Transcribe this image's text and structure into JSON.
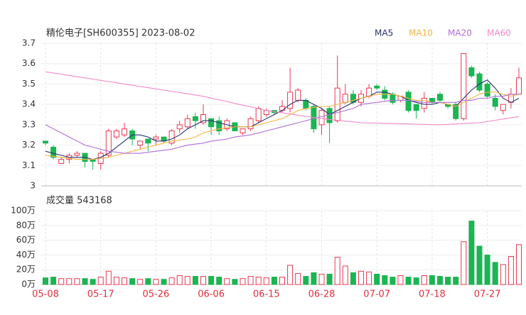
{
  "chart_data": [
    {
      "type": "candlestick",
      "title": "精伦电子[SH600355] 2023-08-02",
      "categories": [
        "05-08",
        null,
        null,
        null,
        null,
        null,
        null,
        "05-17",
        null,
        null,
        null,
        null,
        null,
        null,
        "05-26",
        null,
        null,
        null,
        null,
        null,
        null,
        "06-06",
        null,
        null,
        null,
        null,
        null,
        null,
        "06-15",
        null,
        null,
        null,
        null,
        null,
        null,
        "06-28",
        null,
        null,
        null,
        null,
        null,
        null,
        "07-07",
        null,
        null,
        null,
        null,
        null,
        null,
        "07-18",
        null,
        null,
        null,
        null,
        null,
        null,
        "07-27",
        null,
        null,
        null,
        null
      ],
      "open": [
        3.22,
        3.19,
        3.11,
        3.13,
        3.15,
        3.16,
        3.13,
        3.11,
        3.15,
        3.24,
        3.25,
        3.27,
        3.2,
        3.23,
        3.23,
        3.24,
        3.21,
        3.28,
        3.29,
        3.34,
        3.31,
        3.33,
        3.32,
        3.28,
        3.31,
        3.26,
        3.28,
        3.32,
        3.35,
        3.37,
        3.37,
        3.38,
        3.42,
        3.42,
        3.39,
        3.3,
        3.38,
        3.32,
        3.41,
        3.45,
        3.41,
        3.44,
        3.49,
        3.47,
        3.45,
        3.42,
        3.46,
        3.4,
        3.38,
        3.43,
        3.45,
        3.4,
        3.4,
        3.33,
        3.58,
        3.55,
        3.5,
        3.43,
        3.37,
        3.41,
        3.45
      ],
      "high": [
        3.22,
        3.2,
        3.14,
        3.16,
        3.17,
        3.16,
        3.13,
        3.17,
        3.28,
        3.28,
        3.31,
        3.28,
        3.22,
        3.23,
        3.25,
        3.24,
        3.28,
        3.32,
        3.35,
        3.36,
        3.4,
        3.33,
        3.34,
        3.33,
        3.31,
        3.28,
        3.34,
        3.39,
        3.38,
        3.37,
        3.42,
        3.58,
        3.48,
        3.43,
        3.4,
        3.38,
        3.39,
        3.64,
        3.5,
        3.47,
        3.47,
        3.5,
        3.5,
        3.49,
        3.46,
        3.44,
        3.47,
        3.4,
        3.46,
        3.43,
        3.46,
        3.4,
        3.41,
        3.65,
        3.59,
        3.56,
        3.51,
        3.45,
        3.4,
        3.48,
        3.58
      ],
      "low": [
        3.2,
        3.13,
        3.11,
        3.11,
        3.14,
        3.09,
        3.08,
        3.08,
        3.14,
        3.23,
        3.24,
        3.2,
        3.18,
        3.17,
        3.2,
        3.21,
        3.2,
        3.26,
        3.28,
        3.28,
        3.3,
        3.25,
        3.25,
        3.27,
        3.27,
        3.25,
        3.27,
        3.31,
        3.34,
        3.35,
        3.36,
        3.36,
        3.41,
        3.37,
        3.26,
        3.25,
        3.21,
        3.31,
        3.4,
        3.4,
        3.39,
        3.43,
        3.47,
        3.42,
        3.4,
        3.41,
        3.36,
        3.33,
        3.36,
        3.4,
        3.41,
        3.38,
        3.32,
        3.32,
        3.53,
        3.46,
        3.43,
        3.37,
        3.35,
        3.38,
        3.45
      ],
      "close": [
        3.21,
        3.14,
        3.13,
        3.15,
        3.16,
        3.12,
        3.12,
        3.16,
        3.27,
        3.27,
        3.28,
        3.23,
        3.22,
        3.21,
        3.24,
        3.22,
        3.27,
        3.3,
        3.33,
        3.32,
        3.35,
        3.29,
        3.27,
        3.32,
        3.27,
        3.28,
        3.33,
        3.38,
        3.37,
        3.36,
        3.39,
        3.46,
        3.47,
        3.38,
        3.28,
        3.37,
        3.31,
        3.48,
        3.45,
        3.41,
        3.45,
        3.48,
        3.48,
        3.43,
        3.41,
        3.44,
        3.37,
        3.37,
        3.43,
        3.41,
        3.42,
        3.39,
        3.33,
        3.65,
        3.54,
        3.47,
        3.44,
        3.39,
        3.4,
        3.45,
        3.53
      ],
      "up_color": "#e8384f",
      "down_color": "#1bb552",
      "ylim": [
        3,
        3.7
      ],
      "yticks": [
        3,
        3.1,
        3.2,
        3.3,
        3.4,
        3.5,
        3.6,
        3.7
      ],
      "grid": true,
      "series": [
        {
          "name": "MA5",
          "color": "#2d3170",
          "values": [
            3.17,
            3.16,
            3.15,
            3.14,
            3.14,
            3.14,
            3.13,
            3.14,
            3.16,
            3.19,
            3.22,
            3.25,
            3.25,
            3.24,
            3.22,
            3.22,
            3.23,
            3.25,
            3.28,
            3.3,
            3.32,
            3.32,
            3.31,
            3.3,
            3.29,
            3.29,
            3.29,
            3.31,
            3.33,
            3.35,
            3.37,
            3.4,
            3.42,
            3.42,
            3.4,
            3.38,
            3.35,
            3.37,
            3.39,
            3.41,
            3.43,
            3.44,
            3.46,
            3.46,
            3.45,
            3.44,
            3.42,
            3.41,
            3.4,
            3.4,
            3.41,
            3.4,
            3.39,
            3.43,
            3.47,
            3.5,
            3.52,
            3.48,
            3.43,
            3.41,
            3.43
          ]
        },
        {
          "name": "MA10",
          "color": "#f2b544",
          "values": [
            3.15,
            3.145,
            3.14,
            3.135,
            3.13,
            3.13,
            3.13,
            3.135,
            3.14,
            3.15,
            3.16,
            3.17,
            3.18,
            3.19,
            3.2,
            3.21,
            3.22,
            3.225,
            3.23,
            3.24,
            3.26,
            3.27,
            3.28,
            3.285,
            3.29,
            3.29,
            3.29,
            3.3,
            3.31,
            3.32,
            3.33,
            3.35,
            3.37,
            3.38,
            3.385,
            3.39,
            3.39,
            3.4,
            3.41,
            3.42,
            3.43,
            3.44,
            3.45,
            3.45,
            3.45,
            3.44,
            3.43,
            3.42,
            3.42,
            3.41,
            3.41,
            3.4,
            3.39,
            3.41,
            3.43,
            3.45,
            3.46,
            3.46,
            3.45,
            3.44,
            3.45
          ]
        },
        {
          "name": "MA20",
          "color": "#b06fd8",
          "values": [
            3.3,
            3.28,
            3.26,
            3.24,
            3.22,
            3.2,
            3.19,
            3.18,
            3.17,
            3.165,
            3.16,
            3.16,
            3.16,
            3.165,
            3.17,
            3.175,
            3.18,
            3.19,
            3.2,
            3.205,
            3.21,
            3.22,
            3.225,
            3.23,
            3.24,
            3.245,
            3.25,
            3.26,
            3.27,
            3.28,
            3.29,
            3.3,
            3.31,
            3.32,
            3.33,
            3.34,
            3.35,
            3.36,
            3.37,
            3.38,
            3.4,
            3.405,
            3.41,
            3.415,
            3.42,
            3.42,
            3.42,
            3.415,
            3.41,
            3.41,
            3.41,
            3.41,
            3.41,
            3.42,
            3.42,
            3.43,
            3.43,
            3.44,
            3.44,
            3.45,
            3.45
          ]
        },
        {
          "name": "MA60",
          "color": "#f08bc8",
          "values": [
            3.56,
            3.554,
            3.548,
            3.542,
            3.536,
            3.53,
            3.524,
            3.518,
            3.512,
            3.506,
            3.5,
            3.494,
            3.488,
            3.482,
            3.476,
            3.47,
            3.464,
            3.458,
            3.452,
            3.446,
            3.44,
            3.431,
            3.422,
            3.414,
            3.405,
            3.396,
            3.388,
            3.379,
            3.37,
            3.364,
            3.359,
            3.353,
            3.347,
            3.341,
            3.336,
            3.33,
            3.326,
            3.322,
            3.318,
            3.314,
            3.31,
            3.309,
            3.308,
            3.307,
            3.306,
            3.305,
            3.304,
            3.303,
            3.302,
            3.301,
            3.3,
            3.302,
            3.304,
            3.306,
            3.308,
            3.31,
            3.316,
            3.322,
            3.328,
            3.334,
            3.34
          ]
        }
      ]
    },
    {
      "type": "volume",
      "title": "成交量 543168",
      "values": [
        9,
        10,
        8,
        8,
        8,
        8,
        7,
        10,
        18,
        10,
        9,
        8,
        7,
        8,
        7,
        7,
        9,
        12,
        11,
        11,
        11,
        11,
        10,
        8,
        7,
        8,
        11,
        10,
        9,
        10,
        10,
        26,
        15,
        11,
        16,
        14,
        14,
        37,
        25,
        16,
        18,
        17,
        14,
        12,
        10,
        12,
        10,
        9,
        12,
        12,
        11,
        10,
        10,
        58,
        86,
        52,
        40,
        30,
        27,
        38,
        54
      ],
      "ylim": [
        0,
        100
      ],
      "yticks": [
        {
          "value": 0,
          "label": "0万"
        },
        {
          "value": 20,
          "label": "20万"
        },
        {
          "value": 40,
          "label": "40万"
        },
        {
          "value": 60,
          "label": "60万"
        },
        {
          "value": 80,
          "label": "80万"
        },
        {
          "value": 100,
          "label": "100万"
        }
      ],
      "grid": true
    }
  ]
}
